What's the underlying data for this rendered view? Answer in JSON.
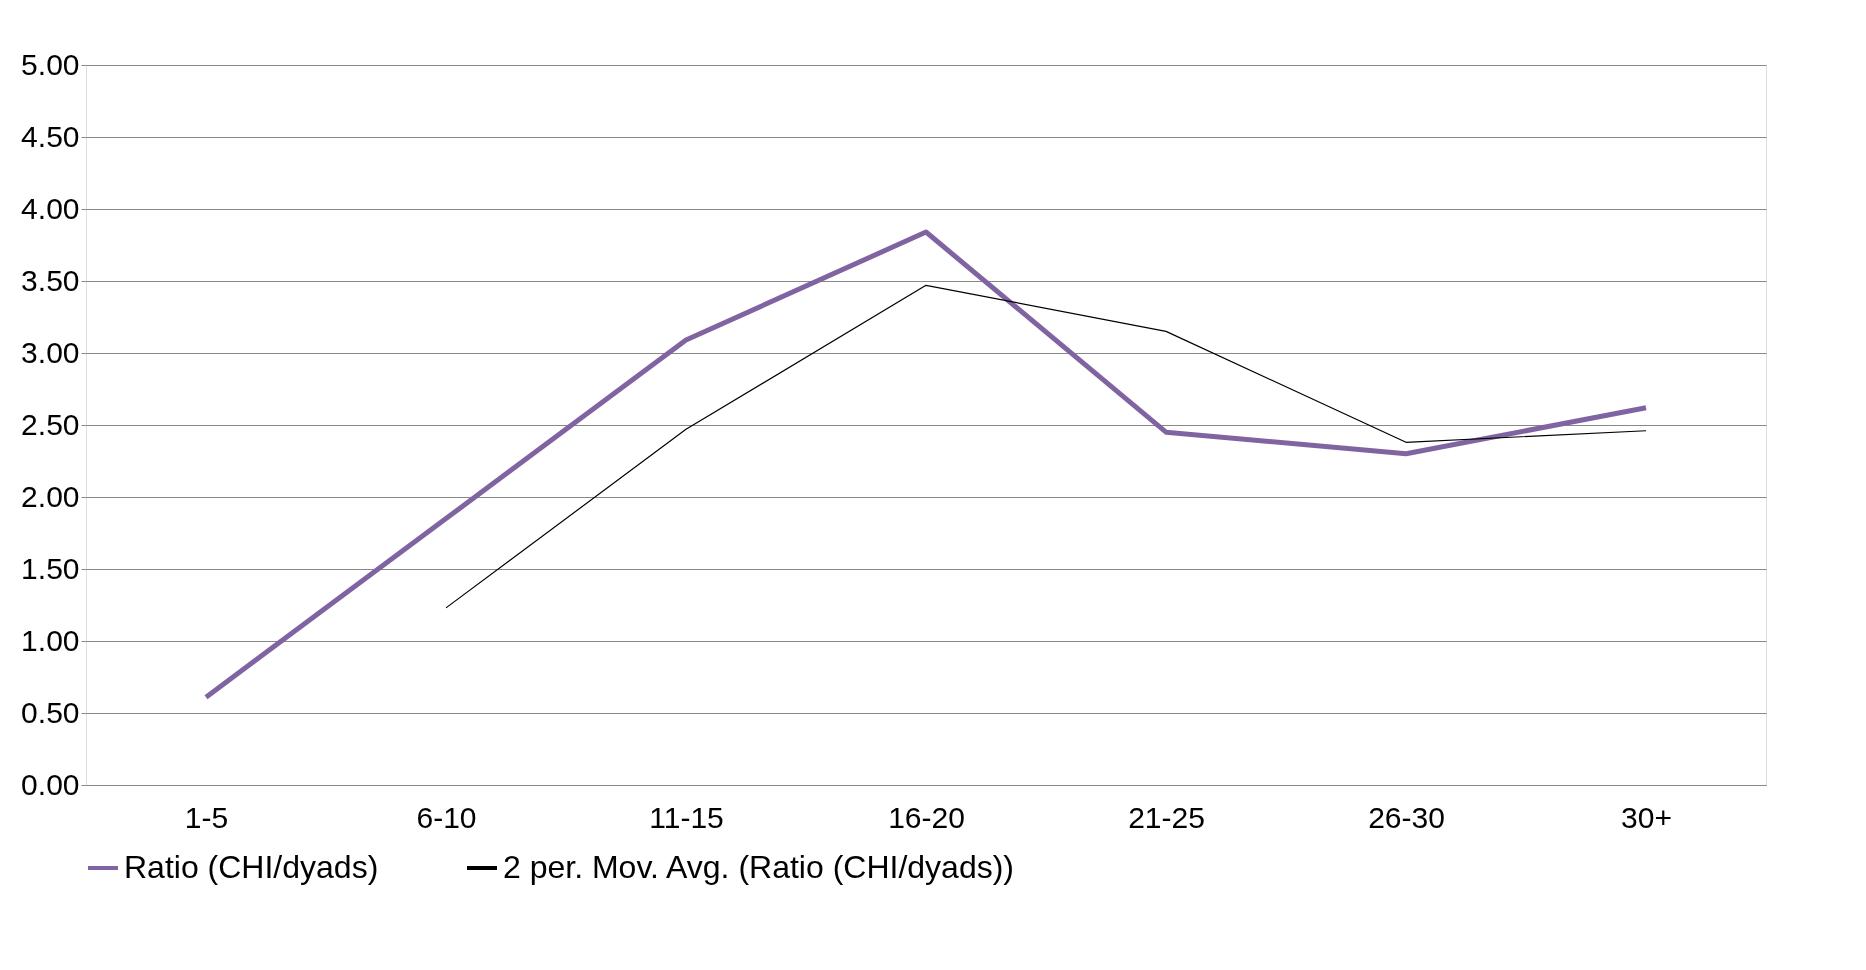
{
  "chart_data": {
    "type": "line",
    "categories": [
      "1-5",
      "6-10",
      "11-15",
      "16-20",
      "21-25",
      "26-30",
      "30+"
    ],
    "series": [
      {
        "name": "Ratio (CHI/dyads)",
        "color": "#8064a2",
        "values": [
          0.61,
          1.85,
          3.09,
          3.84,
          2.45,
          2.3,
          2.62
        ]
      },
      {
        "name": "2 per. Mov. Avg. (Ratio (CHI/dyads))",
        "color": "#000000",
        "values": [
          null,
          1.23,
          2.47,
          3.47,
          3.15,
          2.38,
          2.46
        ]
      }
    ],
    "ylim": [
      0,
      5
    ],
    "yticks": [
      {
        "value": 0,
        "label": "0.00"
      },
      {
        "value": 0.5,
        "label": "0.50"
      },
      {
        "value": 1,
        "label": "1.00"
      },
      {
        "value": 1.5,
        "label": "1.50"
      },
      {
        "value": 2,
        "label": "2.00"
      },
      {
        "value": 2.5,
        "label": "2.50"
      },
      {
        "value": 3,
        "label": "3.00"
      },
      {
        "value": 3.5,
        "label": "3.50"
      },
      {
        "value": 4,
        "label": "4.00"
      },
      {
        "value": 4.5,
        "label": "4.50"
      },
      {
        "value": 5,
        "label": "5.00"
      }
    ],
    "grid": "y",
    "legend": "bottom",
    "marker": "none",
    "line_style": "solid"
  }
}
